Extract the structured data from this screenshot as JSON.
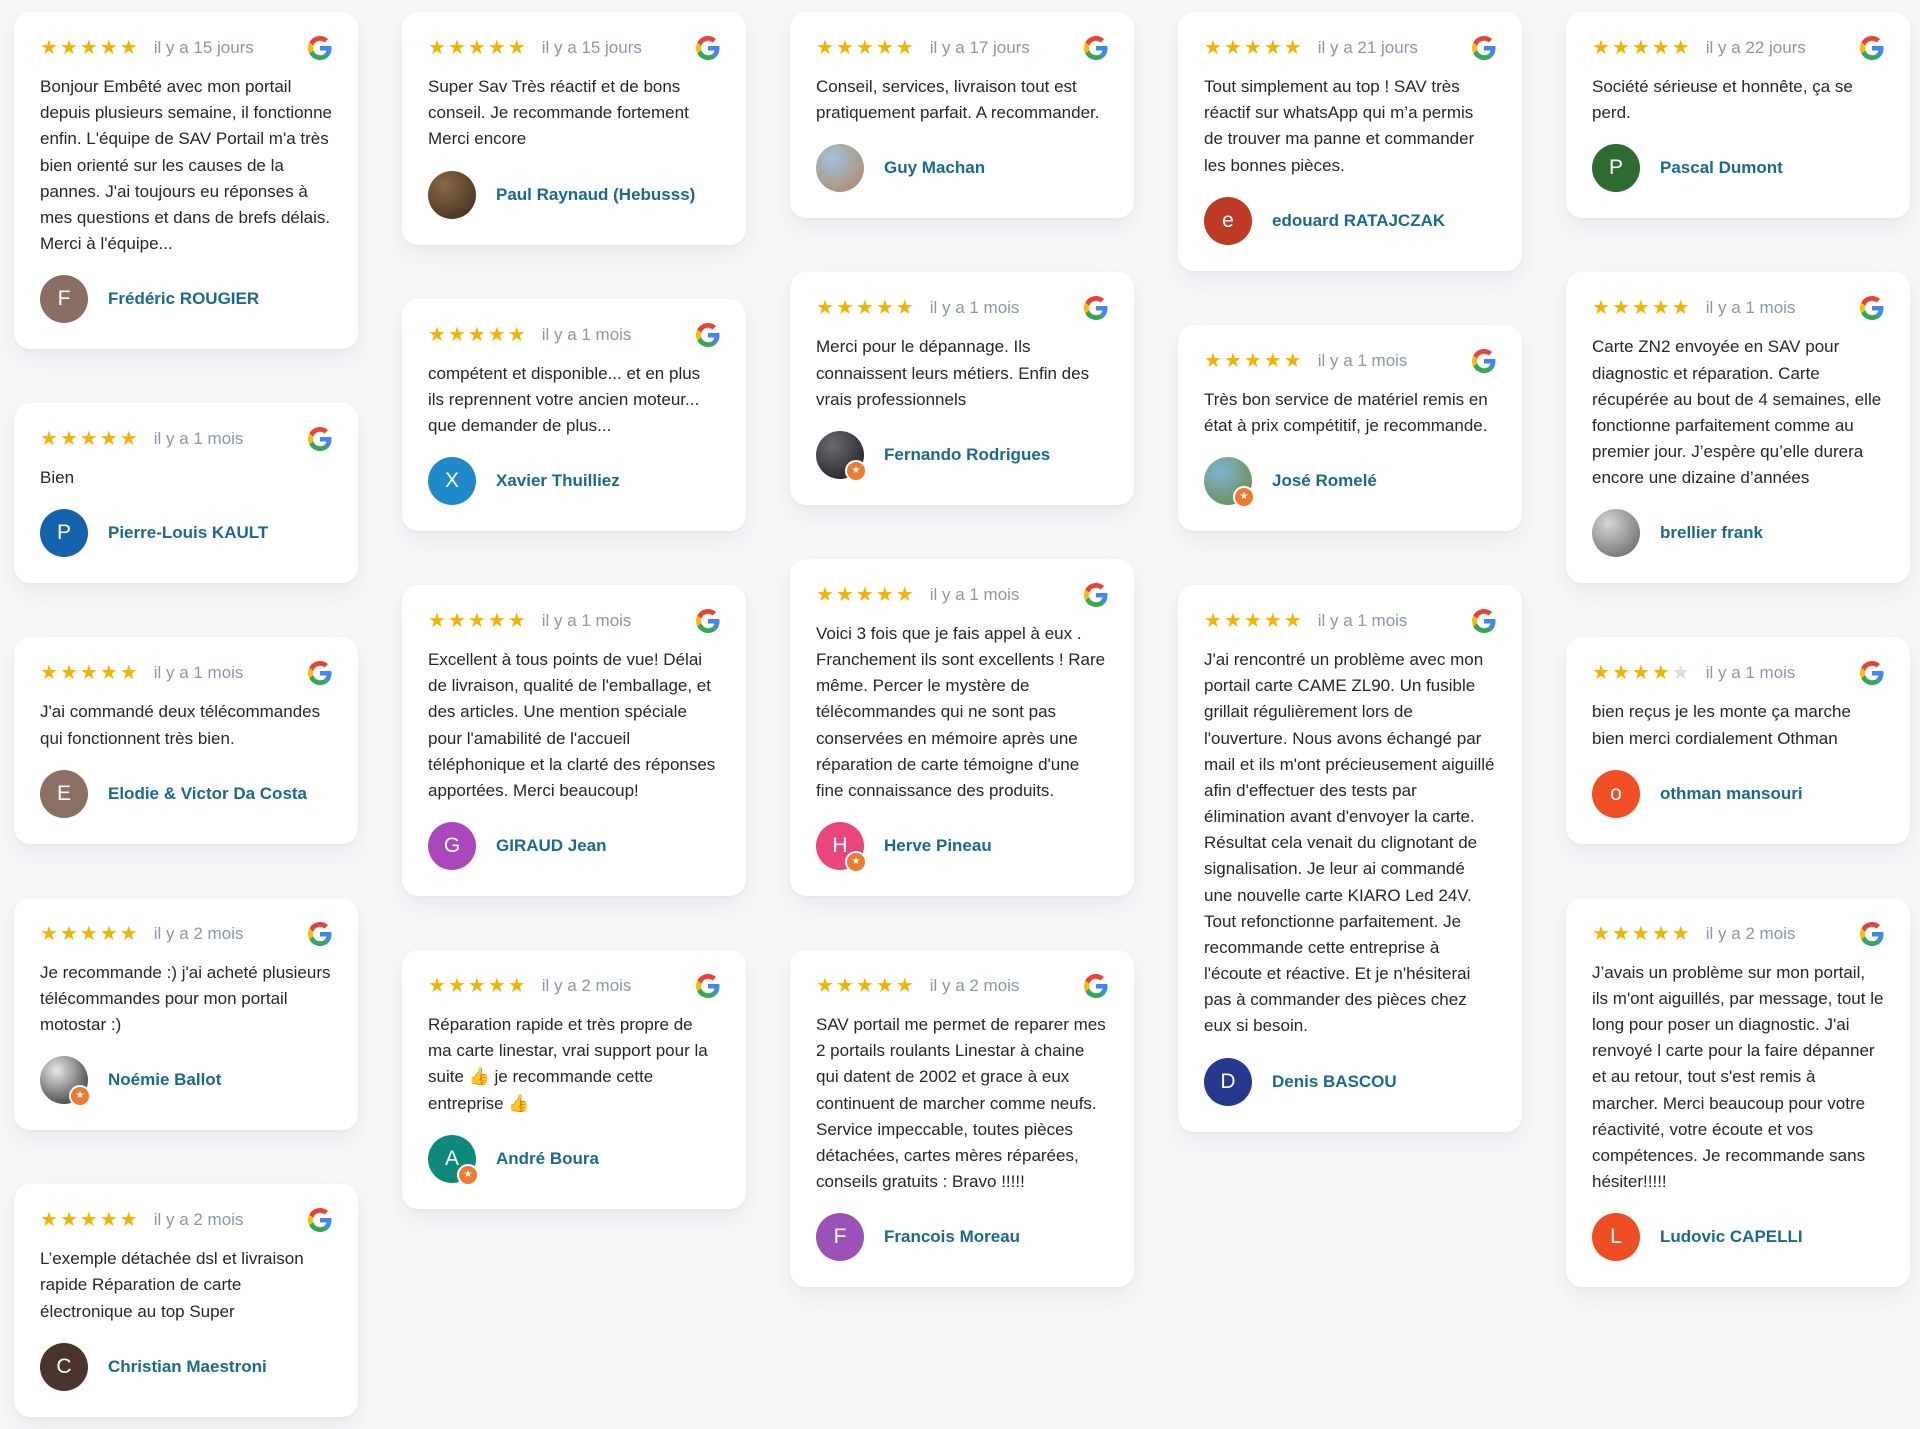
{
  "widget": {
    "type": "google-reviews-grid",
    "time_prefix_examples": [
      "il y a 15 jours",
      "il y a 1 mois",
      "il y a 2 mois"
    ]
  },
  "colors": {
    "page_bg": "#f7f8fa",
    "card_bg": "#ffffff",
    "review_text": "#24282c",
    "time_text": "#8b98a7",
    "name_text": "#1b6a8e",
    "star_filled": "#f5b301",
    "star_empty": "#d8dde3",
    "badge_bg": "#ee7b2e"
  },
  "icons": {
    "google_g": "google-g-icon",
    "star_glyph": "★",
    "badge_star_glyph": "★"
  },
  "stars": {
    "max": 5
  },
  "columns": [
    [
      {
        "rating": 5,
        "time": "il y a 15 jours",
        "text": "Bonjour Embêté avec mon portail depuis plusieurs semaine, il fonctionne enfin. L'équipe de SAV Portail m'a très bien orienté sur les causes de la pannes. J'ai toujours eu réponses à mes questions et dans de brefs délais. Merci à l'équipe...",
        "reviewer": {
          "name": "Frédéric ROUGIER",
          "avatar": {
            "type": "initial",
            "initial": "F",
            "color": "#8a6e64"
          },
          "badge": false
        }
      },
      {
        "rating": 5,
        "time": "il y a 1 mois",
        "text": "Bien",
        "reviewer": {
          "name": "Pierre-Louis KAULT",
          "avatar": {
            "type": "initial",
            "initial": "P",
            "color": "#1663ad"
          },
          "badge": false
        }
      },
      {
        "rating": 5,
        "time": "il y a 1 mois",
        "text": "J'ai commandé deux télécommandes qui fonctionnent très bien.",
        "reviewer": {
          "name": "Elodie & Victor Da Costa",
          "avatar": {
            "type": "initial",
            "initial": "E",
            "color": "#8d6e63"
          },
          "badge": false
        }
      },
      {
        "rating": 5,
        "time": "il y a 2 mois",
        "text": "Je recommande :) j'ai acheté plusieurs télécommandes pour mon portail motostar :)",
        "reviewer": {
          "name": "Noémie Ballot",
          "avatar": {
            "type": "photo",
            "colors": [
              "#e9e9e9",
              "#3a3a3a"
            ]
          },
          "badge": true
        }
      },
      {
        "rating": 5,
        "time": "il y a 2 mois",
        "text": "L’exemple détachée dsl et livraison rapide Réparation de carte électronique au top Super",
        "reviewer": {
          "name": "Christian Maestroni",
          "avatar": {
            "type": "initial",
            "initial": "C",
            "color": "#4b342c"
          },
          "badge": false
        }
      }
    ],
    [
      {
        "rating": 5,
        "time": "il y a 15 jours",
        "text": "Super Sav Très réactif et de bons conseil. Je recommande fortement Merci encore",
        "reviewer": {
          "name": "Paul Raynaud (Hebusss)",
          "avatar": {
            "type": "photo",
            "colors": [
              "#8a6a45",
              "#45321f"
            ]
          },
          "badge": false
        }
      },
      {
        "rating": 5,
        "time": "il y a 1 mois",
        "text": "compétent et disponible... et en plus ils reprennent votre ancien moteur... que demander de plus...",
        "reviewer": {
          "name": "Xavier Thuilliez",
          "avatar": {
            "type": "initial",
            "initial": "X",
            "color": "#2089c9"
          },
          "badge": false
        }
      },
      {
        "rating": 5,
        "time": "il y a 1 mois",
        "text": "Excellent à tous points de vue! Délai de livraison, qualité de l'emballage, et des articles. Une mention spéciale pour l'amabilité de l'accueil téléphonique et la clarté des réponses apportées. Merci beaucoup!",
        "reviewer": {
          "name": "GIRAUD Jean",
          "avatar": {
            "type": "initial",
            "initial": "G",
            "color": "#ab47bc"
          },
          "badge": false
        }
      },
      {
        "rating": 5,
        "time": "il y a 2 mois",
        "text": "Réparation rapide et très propre de ma carte linestar, vrai support pour la suite 👍 je recommande cette entreprise 👍",
        "reviewer": {
          "name": "André Boura",
          "avatar": {
            "type": "initial",
            "initial": "A",
            "color": "#0d8a7c"
          },
          "badge": true
        }
      }
    ],
    [
      {
        "rating": 5,
        "time": "il y a 17 jours",
        "text": "Conseil, services, livraison tout est pratiquement parfait. A recommander.",
        "reviewer": {
          "name": "Guy Machan",
          "avatar": {
            "type": "photo",
            "colors": [
              "#9fc3dd",
              "#b08d6e"
            ]
          },
          "badge": false
        }
      },
      {
        "rating": 5,
        "time": "il y a 1 mois",
        "text": "Merci pour le dépannage. Ils connaissent leurs métiers. Enfin des vrais professionnels",
        "reviewer": {
          "name": "Fernando Rodrigues",
          "avatar": {
            "type": "photo",
            "colors": [
              "#6b6b70",
              "#1f2328"
            ]
          },
          "badge": true
        }
      },
      {
        "rating": 5,
        "time": "il y a 1 mois",
        "text": "Voici 3 fois que je fais appel à eux . Franchement ils sont excellents ! Rare même. Percer le mystère de télécommandes qui ne sont pas conservées en mémoire après une réparation de carte témoigne d'une fine connaissance des produits.",
        "reviewer": {
          "name": "Herve Pineau",
          "avatar": {
            "type": "initial",
            "initial": "H",
            "color": "#e8467c"
          },
          "badge": true
        }
      },
      {
        "rating": 5,
        "time": "il y a 2 mois",
        "text": "SAV portail me permet de reparer mes 2 portails roulants Linestar à chaine qui datent de 2002 et grace à eux continuent de marcher comme neufs. Service impeccable, toutes pièces détachées, cartes mères réparées, conseils gratuits : Bravo !!!!!",
        "reviewer": {
          "name": "Francois Moreau",
          "avatar": {
            "type": "initial",
            "initial": "F",
            "color": "#9c51b6"
          },
          "badge": false
        }
      }
    ],
    [
      {
        "rating": 5,
        "time": "il y a 21 jours",
        "text": "Tout simplement au top ! SAV très réactif sur whatsApp qui m’a permis de trouver ma panne et commander les bonnes pièces.",
        "reviewer": {
          "name": "edouard RATAJCZAK",
          "avatar": {
            "type": "initial",
            "initial": "e",
            "color": "#bf3a24"
          },
          "badge": false
        }
      },
      {
        "rating": 5,
        "time": "il y a 1 mois",
        "text": "Très bon service de matériel remis en état à prix compétitif, je recommande.",
        "reviewer": {
          "name": "José Romelé",
          "avatar": {
            "type": "photo",
            "colors": [
              "#7fb3d5",
              "#6b8f4e"
            ]
          },
          "badge": true
        }
      },
      {
        "rating": 5,
        "time": "il y a 1 mois",
        "text": "J'ai rencontré un problème avec mon portail carte CAME ZL90. Un fusible grillait régulièrement lors de l'ouverture. Nous avons échangé par mail et ils m'ont précieusement aiguillé afin d'effectuer des tests par élimination avant d'envoyer la carte. Résultat cela venait du clignotant de signalisation. Je leur ai commandé une nouvelle carte KIARO Led 24V. Tout refonctionne parfaitement. Je recommande cette entreprise à l'écoute et réactive. Et je n'hésiterai pas à commander des pièces chez eux si besoin.",
        "reviewer": {
          "name": "Denis BASCOU",
          "avatar": {
            "type": "initial",
            "initial": "D",
            "color": "#27388f"
          },
          "badge": false
        }
      }
    ],
    [
      {
        "rating": 5,
        "time": "il y a 22 jours",
        "text": "Société sérieuse et honnête, ça se perd.",
        "reviewer": {
          "name": "Pascal Dumont",
          "avatar": {
            "type": "initial",
            "initial": "P",
            "color": "#2e6b30"
          },
          "badge": false
        }
      },
      {
        "rating": 5,
        "time": "il y a 1 mois",
        "text": "Carte ZN2 envoyée en SAV pour diagnostic et réparation. Carte récupérée au bout de 4 semaines, elle fonctionne parfaitement comme au premier jour. J’espère qu’elle durera encore une dizaine d’années",
        "reviewer": {
          "name": "brellier frank",
          "avatar": {
            "type": "photo",
            "colors": [
              "#d6d6d6",
              "#6f6f6f"
            ]
          },
          "badge": false
        }
      },
      {
        "rating": 4,
        "time": "il y a 1 mois",
        "text": "bien reçus je les monte ça marche bien merci cordialement Othman",
        "reviewer": {
          "name": "othman mansouri",
          "avatar": {
            "type": "initial",
            "initial": "o",
            "color": "#f04e23"
          },
          "badge": false
        }
      },
      {
        "rating": 5,
        "time": "il y a 2 mois",
        "text": "J’avais un problème sur mon portail, ils m'ont aiguillés, par message, tout le long pour poser un diagnostic. J'ai renvoyé l carte pour la faire dépanner et au retour, tout s'est remis à marcher. Merci beaucoup pour votre réactivité, votre écoute et vos compétences. Je recommande sans hésiter!!!!!",
        "reviewer": {
          "name": "Ludovic CAPELLI",
          "avatar": {
            "type": "initial",
            "initial": "L",
            "color": "#ee4c23"
          },
          "badge": false
        }
      }
    ]
  ]
}
